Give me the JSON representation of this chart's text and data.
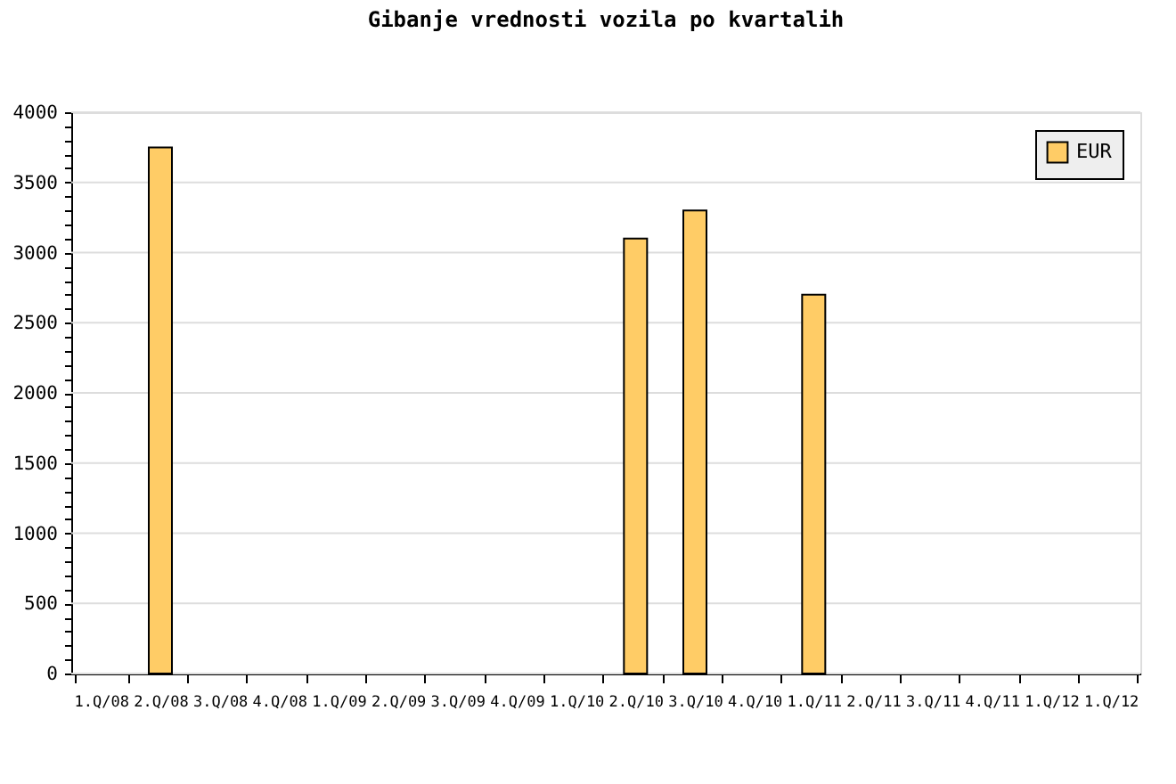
{
  "chart_data": {
    "type": "bar",
    "title": "Gibanje vrednosti vozila po kvartalih",
    "categories": [
      "1.Q/08",
      "2.Q/08",
      "3.Q/08",
      "4.Q/08",
      "1.Q/09",
      "2.Q/09",
      "3.Q/09",
      "4.Q/09",
      "1.Q/10",
      "2.Q/10",
      "3.Q/10",
      "4.Q/10",
      "1.Q/11",
      "2.Q/11",
      "3.Q/11",
      "4.Q/11",
      "1.Q/12",
      "1.Q/12"
    ],
    "series": [
      {
        "name": "EUR",
        "color": "#ffcc66",
        "values": [
          null,
          3750,
          null,
          null,
          null,
          null,
          null,
          null,
          null,
          3100,
          3300,
          null,
          2700,
          null,
          null,
          null,
          null,
          null
        ]
      }
    ],
    "ylim": [
      0,
      4000
    ],
    "yticks": [
      0,
      {
        "value": 100,
        "label": null
      },
      {
        "value": 200,
        "label": null
      },
      {
        "value": 300,
        "label": null
      },
      {
        "value": 400,
        "label": null
      },
      500,
      {
        "value": 600,
        "label": null
      },
      {
        "value": 700,
        "label": null
      },
      {
        "value": 800,
        "label": null
      },
      {
        "value": 900,
        "label": null
      },
      1000,
      {
        "value": 1100,
        "label": null
      },
      {
        "value": 1200,
        "label": null
      },
      {
        "value": 1300,
        "label": null
      },
      {
        "value": 1400,
        "label": null
      },
      1500,
      {
        "value": 1600,
        "label": null
      },
      {
        "value": 1700,
        "label": null
      },
      {
        "value": 1800,
        "label": null
      },
      {
        "value": 1900,
        "label": null
      },
      2000,
      {
        "value": 2100,
        "label": null
      },
      {
        "value": 2200,
        "label": null
      },
      {
        "value": 2300,
        "label": null
      },
      {
        "value": 2400,
        "label": null
      },
      2500,
      {
        "value": 2600,
        "label": null
      },
      {
        "value": 2700,
        "label": null
      },
      {
        "value": 2800,
        "label": null
      },
      {
        "value": 2900,
        "label": null
      },
      3000,
      {
        "value": 3100,
        "label": null
      },
      {
        "value": 3200,
        "label": null
      },
      {
        "value": 3300,
        "label": null
      },
      {
        "value": 3400,
        "label": null
      },
      3500,
      {
        "value": 3600,
        "label": null
      },
      {
        "value": 3700,
        "label": null
      },
      {
        "value": 3800,
        "label": null
      },
      {
        "value": 3900,
        "label": null
      },
      4000
    ],
    "grid": "y",
    "legend": "top right"
  }
}
